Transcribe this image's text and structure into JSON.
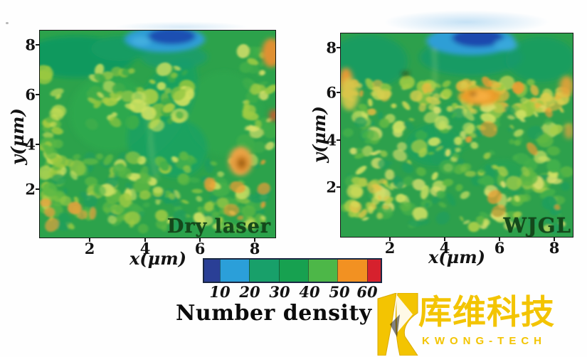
{
  "figure": {
    "background_color": "#fefefe",
    "panels": [
      {
        "label": "Dry laser",
        "xlabel": "x(μm)",
        "ylabel": "y(μm)",
        "x_ticks": [
          "2",
          "4",
          "6",
          "8"
        ],
        "y_ticks": [
          "8",
          "6",
          "4",
          "2"
        ]
      },
      {
        "label": "WJGL",
        "xlabel": "x(μm)",
        "ylabel": "y(μm)",
        "x_ticks": [
          "2",
          "4",
          "6",
          "8"
        ],
        "y_ticks": [
          "8",
          "6",
          "4",
          "2"
        ]
      }
    ],
    "colorbar": {
      "title": "Number density (",
      "tick_labels": [
        "10",
        "20",
        "30",
        "40",
        "50",
        "60"
      ],
      "segment_colors": [
        "#2a3f96",
        "#2b9fd9",
        "#18a06a",
        "#17a150",
        "#4db748",
        "#f29122",
        "#d6212d"
      ]
    },
    "watermark": {
      "icon": "kwong-tech-k-icon",
      "cn": "库维科技",
      "en": "KWONG-TECH",
      "color": "#f3c402"
    }
  },
  "chart_data": {
    "type": "heatmap",
    "colorbar": {
      "label": "Number density (",
      "ticks": [
        10,
        20,
        30,
        40,
        50,
        60
      ],
      "colors": [
        "#2a3f96",
        "#2b9fd9",
        "#18a06a",
        "#17a150",
        "#4db748",
        "#f29122",
        "#d6212d"
      ],
      "range": [
        5,
        65
      ]
    },
    "values_estimated_from_colors": true,
    "panels": [
      {
        "name": "Dry laser",
        "xlabel": "x(μm)",
        "ylabel": "y(μm)",
        "x_range": [
          0,
          8.6
        ],
        "y_range": [
          0,
          8.6
        ],
        "x_centers": [
          0.5,
          1.5,
          2.5,
          3.5,
          4.5,
          5.5,
          6.5,
          7.5
        ],
        "y_centers": [
          8,
          7,
          6,
          5,
          4,
          3,
          2,
          1
        ],
        "values": [
          [
            33,
            36,
            14,
            12,
            28,
            34,
            36,
            48
          ],
          [
            30,
            31,
            42,
            36,
            34,
            30,
            31,
            34
          ],
          [
            44,
            33,
            33,
            39,
            33,
            33,
            33,
            33
          ],
          [
            45,
            33,
            33,
            37,
            33,
            33,
            33,
            40
          ],
          [
            45,
            33,
            33,
            35,
            33,
            33,
            33,
            46
          ],
          [
            41,
            38,
            43,
            34,
            33,
            35,
            52,
            40
          ],
          [
            42,
            39,
            41,
            45,
            40,
            38,
            43,
            37
          ],
          [
            38,
            41,
            38,
            40,
            43,
            38,
            40,
            35
          ]
        ]
      },
      {
        "name": "WJGL",
        "xlabel": "x(μm)",
        "ylabel": "y(μm)",
        "x_range": [
          0,
          8.6
        ],
        "y_range": [
          0,
          8.6
        ],
        "x_centers": [
          0.5,
          1.5,
          2.5,
          3.5,
          4.5,
          5.5,
          6.5,
          7.5
        ],
        "y_centers": [
          8,
          7,
          6,
          5,
          4,
          3,
          2,
          1
        ],
        "values": [
          [
            38,
            35,
            33,
            18,
            12,
            24,
            34,
            38
          ],
          [
            48,
            40,
            33,
            30,
            28,
            33,
            35,
            46
          ],
          [
            44,
            47,
            42,
            40,
            55,
            50,
            47,
            50
          ],
          [
            40,
            43,
            45,
            38,
            40,
            42,
            45,
            41
          ],
          [
            42,
            46,
            38,
            35,
            38,
            40,
            42,
            45
          ],
          [
            40,
            48,
            42,
            38,
            45,
            48,
            45,
            42
          ],
          [
            44,
            50,
            40,
            38,
            42,
            50,
            45,
            40
          ],
          [
            40,
            45,
            42,
            40,
            44,
            42,
            40,
            38
          ]
        ]
      }
    ]
  }
}
